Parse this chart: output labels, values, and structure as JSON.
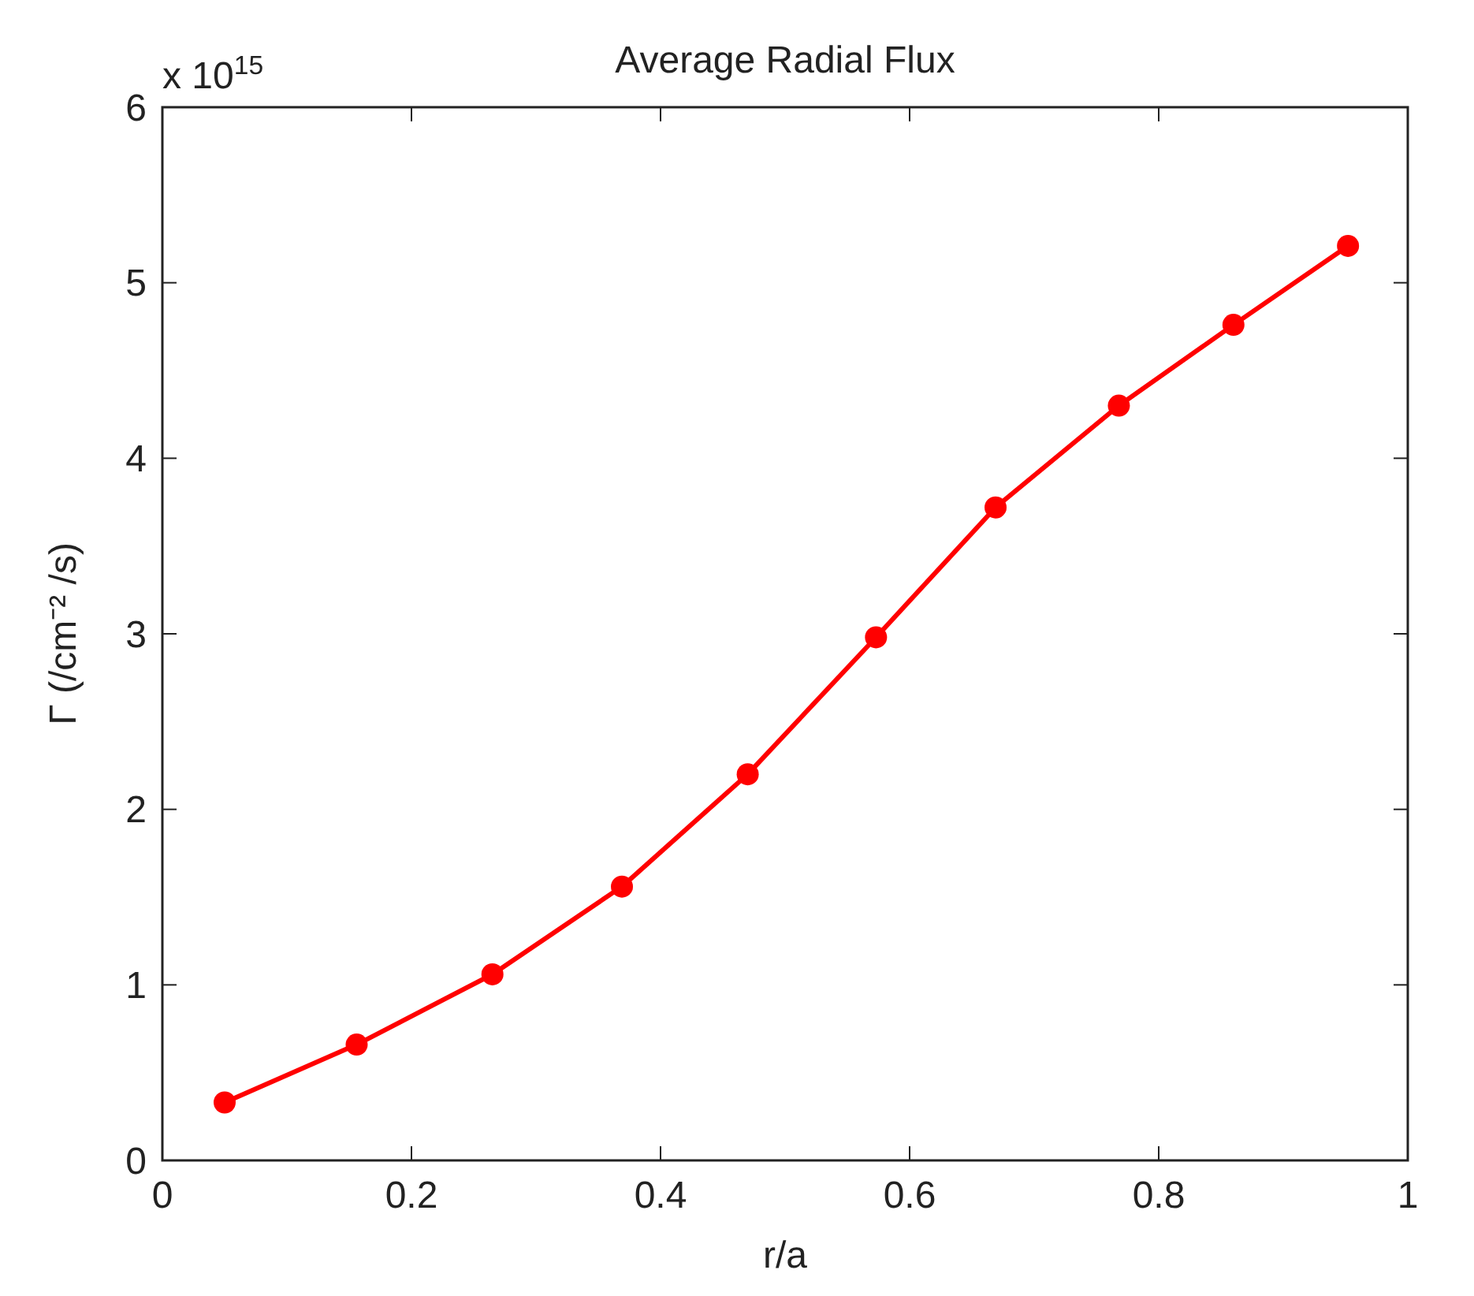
{
  "chart_data": {
    "type": "line",
    "title": "Average Radial Flux",
    "xlabel": "r/a",
    "ylabel": "Γ (/cm⁻² /s)",
    "annotations": [
      "x 10$^{15}$"
    ],
    "x": [
      0.05,
      0.156,
      0.265,
      0.369,
      0.47,
      0.573,
      0.669,
      0.768,
      0.86,
      0.952
    ],
    "series": [
      {
        "color": "#ff0000",
        "values": [
          0.33,
          0.66,
          1.06,
          1.56,
          2.2,
          2.98,
          3.72,
          4.3,
          4.76,
          5.21
        ]
      }
    ],
    "xlim": [
      0,
      1
    ],
    "xticks": [
      0,
      0.2,
      0.4,
      0.6,
      0.8,
      1
    ],
    "ylim": [
      0,
      6
    ],
    "yticks": [
      0,
      1,
      2,
      3,
      4,
      5,
      6
    ],
    "grid": false,
    "marker": "circle",
    "line_style": "solid"
  }
}
